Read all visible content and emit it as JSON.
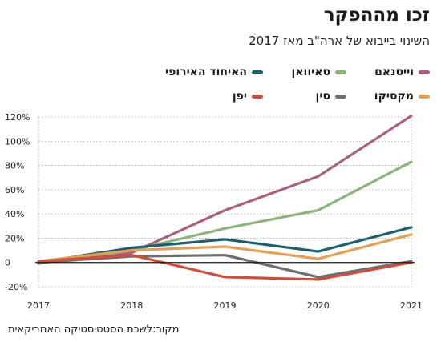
{
  "chart_data": {
    "type": "line",
    "title": "זכו מההפקר",
    "subtitle": "השינוי בייבוא של ארה\"ב מאז 2017",
    "source": "מקור:לשכת הסטטיסטיקה האמריקאית",
    "x": [
      2017,
      2018,
      2019,
      2020,
      2021
    ],
    "x_tick_labels": [
      "2017",
      "2018",
      "2019",
      "2020",
      "2021"
    ],
    "ylim": [
      -20,
      120
    ],
    "y_ticks": [
      -20,
      0,
      20,
      40,
      60,
      80,
      100,
      120
    ],
    "y_tick_labels": [
      "-20%",
      "0",
      "20%",
      "40%",
      "60%",
      "80%",
      "100%",
      "120%"
    ],
    "grid": true,
    "legend_position": "top-right",
    "series": [
      {
        "name": "וייטנאם",
        "color": "#a8607f",
        "values": [
          1,
          8,
          43,
          71,
          121
        ]
      },
      {
        "name": "טאיוואן",
        "color": "#8db37d",
        "values": [
          -1,
          10,
          28,
          43,
          83
        ]
      },
      {
        "name": "האיחוד האירופי",
        "color": "#1e5f6e",
        "values": [
          0,
          12,
          19,
          9,
          29
        ]
      },
      {
        "name": "מקסיקו",
        "color": "#e3a05a",
        "values": [
          1,
          10,
          13,
          3,
          23
        ]
      },
      {
        "name": "סין",
        "color": "#6e6e6e",
        "values": [
          0,
          5,
          6,
          -12,
          1
        ]
      },
      {
        "name": "יפן",
        "color": "#c9503e",
        "values": [
          1,
          6,
          -12,
          -14,
          0
        ]
      }
    ]
  }
}
